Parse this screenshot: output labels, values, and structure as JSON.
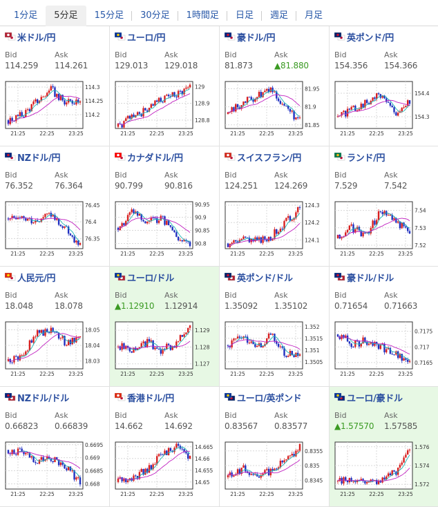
{
  "tabs": [
    {
      "label": "1分足"
    },
    {
      "label": "5分足",
      "active": true
    },
    {
      "label": "15分足"
    },
    {
      "label": "30分足"
    },
    {
      "label": "1時間足"
    },
    {
      "label": "日足"
    },
    {
      "label": "週足"
    },
    {
      "label": "月足"
    }
  ],
  "labels": {
    "bid": "Bid",
    "ask": "Ask"
  },
  "colors": {
    "up": "#d82020",
    "down": "#2030c0",
    "ma_short": "#1cb4b4",
    "ma_long": "#c020c0",
    "highlight_bg": "#e7f8e4",
    "link": "#2b4fa0",
    "rise": "#3a9a22"
  },
  "x_ticks": [
    "21:25",
    "22:25",
    "23:25"
  ],
  "cards": [
    {
      "name": "米ドル/円",
      "flag": "us-jp-flag-icon",
      "bid": "114.259",
      "ask": "114.261",
      "bid_up": false,
      "ask_up": false,
      "highlight": false,
      "yticks": [
        "114.3",
        "114.25",
        "114.2"
      ]
    },
    {
      "name": "ユーロ/円",
      "flag": "eu-jp-flag-icon",
      "bid": "129.013",
      "ask": "129.018",
      "bid_up": false,
      "ask_up": false,
      "highlight": false,
      "yticks": [
        "129",
        "128.9",
        "128.8"
      ]
    },
    {
      "name": "豪ドル/円",
      "flag": "au-jp-flag-icon",
      "bid": "81.873",
      "ask": "▲81.880",
      "bid_up": false,
      "ask_up": true,
      "highlight": false,
      "yticks": [
        "81.95",
        "81.9",
        "81.85"
      ]
    },
    {
      "name": "英ポンド/円",
      "flag": "gb-jp-flag-icon",
      "bid": "154.356",
      "ask": "154.366",
      "bid_up": false,
      "ask_up": false,
      "highlight": false,
      "yticks": [
        "154.4",
        "154.3"
      ]
    },
    {
      "name": "NZドル/円",
      "flag": "nz-jp-flag-icon",
      "bid": "76.352",
      "ask": "76.364",
      "bid_up": false,
      "ask_up": false,
      "highlight": false,
      "yticks": [
        "76.45",
        "76.4",
        "76.35"
      ]
    },
    {
      "name": "カナダドル/円",
      "flag": "ca-jp-flag-icon",
      "bid": "90.799",
      "ask": "90.816",
      "bid_up": false,
      "ask_up": false,
      "highlight": false,
      "yticks": [
        "90.95",
        "90.9",
        "90.85",
        "90.8"
      ]
    },
    {
      "name": "スイスフラン/円",
      "flag": "ch-jp-flag-icon",
      "bid": "124.251",
      "ask": "124.269",
      "bid_up": false,
      "ask_up": false,
      "highlight": false,
      "yticks": [
        "124.3",
        "124.2",
        "124.1"
      ]
    },
    {
      "name": "ランド/円",
      "flag": "za-jp-flag-icon",
      "bid": "7.529",
      "ask": "7.542",
      "bid_up": false,
      "ask_up": false,
      "highlight": false,
      "yticks": [
        "7.54",
        "7.53",
        "7.52"
      ]
    },
    {
      "name": "人民元/円",
      "flag": "cn-jp-flag-icon",
      "bid": "18.048",
      "ask": "18.078",
      "bid_up": false,
      "ask_up": false,
      "highlight": false,
      "yticks": [
        "18.05",
        "18.04",
        "18.03"
      ]
    },
    {
      "name": "ユーロ/ドル",
      "flag": "eu-us-flag-icon",
      "bid": "▲1.12910",
      "ask": "1.12914",
      "bid_up": true,
      "ask_up": false,
      "highlight": true,
      "yticks": [
        "1.129",
        "1.128",
        "1.127"
      ]
    },
    {
      "name": "英ポンド/ドル",
      "flag": "gb-us-flag-icon",
      "bid": "1.35092",
      "ask": "1.35102",
      "bid_up": false,
      "ask_up": false,
      "highlight": false,
      "yticks": [
        "1.352",
        "1.3515",
        "1.351",
        "1.3505"
      ]
    },
    {
      "name": "豪ドル/ドル",
      "flag": "au-us-flag-icon",
      "bid": "0.71654",
      "ask": "0.71663",
      "bid_up": false,
      "ask_up": false,
      "highlight": false,
      "yticks": [
        "0.7175",
        "0.717",
        "0.7165"
      ]
    },
    {
      "name": "NZドル/ドル",
      "flag": "nz-us-flag-icon",
      "bid": "0.66823",
      "ask": "0.66839",
      "bid_up": false,
      "ask_up": false,
      "highlight": false,
      "yticks": [
        "0.6695",
        "0.669",
        "0.6685",
        "0.668"
      ]
    },
    {
      "name": "香港ドル/円",
      "flag": "hk-jp-flag-icon",
      "bid": "14.662",
      "ask": "14.692",
      "bid_up": false,
      "ask_up": false,
      "highlight": false,
      "yticks": [
        "14.665",
        "14.66",
        "14.655",
        "14.65"
      ]
    },
    {
      "name": "ユーロ/英ポンド",
      "flag": "eu-gb-flag-icon",
      "bid": "0.83567",
      "ask": "0.83577",
      "bid_up": false,
      "ask_up": false,
      "highlight": false,
      "yticks": [
        "0.8355",
        "0.835",
        "0.8345"
      ]
    },
    {
      "name": "ユーロ/豪ドル",
      "flag": "eu-au-flag-icon",
      "bid": "▲1.57570",
      "ask": "1.57585",
      "bid_up": true,
      "ask_up": false,
      "highlight": true,
      "yticks": [
        "1.576",
        "1.574",
        "1.572"
      ]
    }
  ],
  "chart_data": [
    {
      "type": "line",
      "pair": "米ドル/円",
      "x": [
        "21:25",
        "22:25",
        "23:25"
      ],
      "ylim": [
        114.15,
        114.32
      ],
      "trend": [
        114.18,
        114.2,
        114.25,
        114.29,
        114.24,
        114.26
      ]
    },
    {
      "type": "line",
      "pair": "ユーロ/円",
      "x": [
        "21:25",
        "22:25",
        "23:25"
      ],
      "ylim": [
        128.75,
        129.03
      ],
      "trend": [
        128.76,
        128.82,
        128.86,
        128.92,
        128.95,
        129.01
      ]
    },
    {
      "type": "line",
      "pair": "豪ドル/円",
      "x": [
        "21:25",
        "22:25",
        "23:25"
      ],
      "ylim": [
        81.84,
        81.97
      ],
      "trend": [
        81.88,
        81.91,
        81.93,
        81.95,
        81.9,
        81.86
      ]
    },
    {
      "type": "line",
      "pair": "英ポンド/円",
      "x": [
        "21:25",
        "22:25",
        "23:25"
      ],
      "ylim": [
        154.25,
        154.45
      ],
      "trend": [
        154.3,
        154.33,
        154.36,
        154.4,
        154.31,
        154.36
      ]
    },
    {
      "type": "line",
      "pair": "NZドル/円",
      "x": [
        "21:25",
        "22:25",
        "23:25"
      ],
      "ylim": [
        76.32,
        76.46
      ],
      "trend": [
        76.41,
        76.42,
        76.4,
        76.42,
        76.38,
        76.33
      ]
    },
    {
      "type": "line",
      "pair": "カナダドル/円",
      "x": [
        "21:25",
        "22:25",
        "23:25"
      ],
      "ylim": [
        90.78,
        90.96
      ],
      "trend": [
        90.86,
        90.92,
        90.88,
        90.9,
        90.83,
        90.8
      ]
    },
    {
      "type": "line",
      "pair": "スイスフラン/円",
      "x": [
        "21:25",
        "22:25",
        "23:25"
      ],
      "ylim": [
        124.05,
        124.32
      ],
      "trend": [
        124.08,
        124.11,
        124.09,
        124.12,
        124.2,
        124.28
      ]
    },
    {
      "type": "line",
      "pair": "ランド/円",
      "x": [
        "21:25",
        "22:25",
        "23:25"
      ],
      "ylim": [
        7.518,
        7.545
      ],
      "trend": [
        7.524,
        7.53,
        7.526,
        7.54,
        7.533,
        7.529
      ]
    },
    {
      "type": "line",
      "pair": "人民元/円",
      "x": [
        "21:25",
        "22:25",
        "23:25"
      ],
      "ylim": [
        18.025,
        18.055
      ],
      "trend": [
        18.03,
        18.034,
        18.048,
        18.05,
        18.042,
        18.046
      ]
    },
    {
      "type": "line",
      "pair": "ユーロ/ドル",
      "x": [
        "21:25",
        "22:25",
        "23:25"
      ],
      "ylim": [
        1.1267,
        1.1295
      ],
      "trend": [
        1.128,
        1.1279,
        1.1283,
        1.1278,
        1.1282,
        1.1291
      ]
    },
    {
      "type": "line",
      "pair": "英ポンド/ドル",
      "x": [
        "21:25",
        "22:25",
        "23:25"
      ],
      "ylim": [
        1.3502,
        1.3522
      ],
      "trend": [
        1.3512,
        1.3515,
        1.351,
        1.3517,
        1.3508,
        1.3509
      ]
    },
    {
      "type": "line",
      "pair": "豪ドル/ドル",
      "x": [
        "21:25",
        "22:25",
        "23:25"
      ],
      "ylim": [
        0.7163,
        0.7178
      ],
      "trend": [
        0.7174,
        0.7171,
        0.7172,
        0.717,
        0.7168,
        0.7165
      ]
    },
    {
      "type": "line",
      "pair": "NZドル/ドル",
      "x": [
        "21:25",
        "22:25",
        "23:25"
      ],
      "ylim": [
        0.6678,
        0.6696
      ],
      "trend": [
        0.6693,
        0.6692,
        0.6689,
        0.669,
        0.6686,
        0.6681
      ]
    },
    {
      "type": "line",
      "pair": "香港ドル/円",
      "x": [
        "21:25",
        "22:25",
        "23:25"
      ],
      "ylim": [
        14.647,
        14.667
      ],
      "trend": [
        14.65,
        14.652,
        14.655,
        14.662,
        14.665,
        14.661
      ]
    },
    {
      "type": "line",
      "pair": "ユーロ/英ポンド",
      "x": [
        "21:25",
        "22:25",
        "23:25"
      ],
      "ylim": [
        0.8342,
        0.8358
      ],
      "trend": [
        0.8346,
        0.8349,
        0.8347,
        0.8348,
        0.8352,
        0.8356
      ]
    },
    {
      "type": "line",
      "pair": "ユーロ/豪ドル",
      "x": [
        "21:25",
        "22:25",
        "23:25"
      ],
      "ylim": [
        1.5715,
        1.5765
      ],
      "trend": [
        1.5723,
        1.5726,
        1.5724,
        1.5725,
        1.5733,
        1.5758
      ]
    }
  ]
}
